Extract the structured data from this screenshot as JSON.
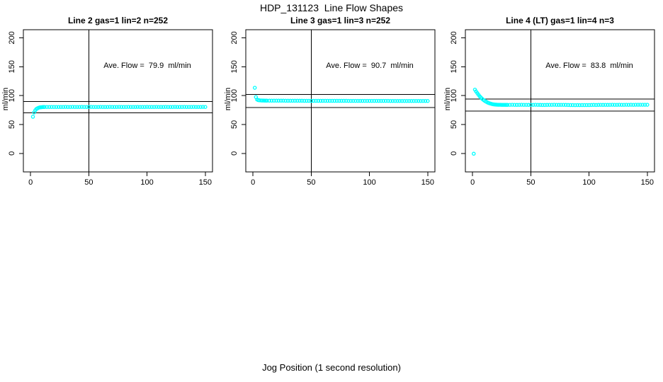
{
  "figure": {
    "title": "HDP_131123  Line Flow Shapes",
    "xlabel": "Jog Position (1 second resolution)",
    "background_color": "#FFFFFF",
    "point_color": "#00FFFF",
    "line_color": "#000000"
  },
  "chart_data": [
    {
      "type": "scatter",
      "title": "Line 2 gas=1 lin=2 n=252",
      "annotation": "Ave. Flow =  79.9  ml/min",
      "ave_flow_ml_min": 79.9,
      "ylabel": "ml/min",
      "xticks": [
        0,
        50,
        100,
        150
      ],
      "yticks": [
        0,
        50,
        100,
        150,
        200
      ],
      "xlim": [
        -6.2,
        156.2
      ],
      "ylim": [
        -32,
        214
      ],
      "vline_x": 50,
      "hlines": [
        89.9,
        69.9
      ],
      "grid": false,
      "points": [
        [
          2,
          63.5
        ],
        [
          3,
          70.8
        ],
        [
          4,
          74.6
        ],
        [
          5,
          76.9
        ],
        [
          6,
          78.2
        ],
        [
          7,
          79.1
        ],
        [
          8,
          79.6
        ],
        [
          9,
          79.9
        ],
        [
          10,
          80.1
        ],
        [
          11,
          80.2
        ],
        [
          12,
          80.3
        ],
        [
          14,
          80.3
        ],
        [
          16,
          80.4
        ],
        [
          18,
          80.4
        ],
        [
          20,
          80.4
        ],
        [
          22,
          80.4
        ],
        [
          24,
          80.4
        ],
        [
          26,
          80.4
        ],
        [
          28,
          80.4
        ],
        [
          30,
          80.5
        ],
        [
          32,
          80.4
        ],
        [
          34,
          80.4
        ],
        [
          36,
          80.5
        ],
        [
          38,
          80.4
        ],
        [
          40,
          80.4
        ],
        [
          42,
          80.4
        ],
        [
          44,
          80.5
        ],
        [
          46,
          80.4
        ],
        [
          48,
          80.4
        ],
        [
          50,
          80.4
        ],
        [
          52,
          80.5
        ],
        [
          54,
          80.4
        ],
        [
          56,
          80.4
        ],
        [
          58,
          80.4
        ],
        [
          60,
          80.5
        ],
        [
          62,
          80.4
        ],
        [
          64,
          80.4
        ],
        [
          66,
          80.4
        ],
        [
          68,
          80.5
        ],
        [
          70,
          80.4
        ],
        [
          72,
          80.4
        ],
        [
          74,
          80.4
        ],
        [
          76,
          80.5
        ],
        [
          78,
          80.4
        ],
        [
          80,
          80.4
        ],
        [
          82,
          80.4
        ],
        [
          84,
          80.5
        ],
        [
          86,
          80.4
        ],
        [
          88,
          80.4
        ],
        [
          90,
          80.4
        ],
        [
          92,
          80.5
        ],
        [
          94,
          80.4
        ],
        [
          96,
          80.4
        ],
        [
          98,
          80.4
        ],
        [
          100,
          80.5
        ],
        [
          102,
          80.4
        ],
        [
          104,
          80.4
        ],
        [
          106,
          80.4
        ],
        [
          108,
          80.5
        ],
        [
          110,
          80.4
        ],
        [
          112,
          80.4
        ],
        [
          114,
          80.4
        ],
        [
          116,
          80.5
        ],
        [
          118,
          80.4
        ],
        [
          120,
          80.4
        ],
        [
          122,
          80.4
        ],
        [
          124,
          80.5
        ],
        [
          126,
          80.4
        ],
        [
          128,
          80.4
        ],
        [
          130,
          80.4
        ],
        [
          132,
          80.5
        ],
        [
          134,
          80.4
        ],
        [
          136,
          80.4
        ],
        [
          138,
          80.4
        ],
        [
          140,
          80.5
        ],
        [
          142,
          80.4
        ],
        [
          144,
          80.4
        ],
        [
          146,
          80.4
        ],
        [
          148,
          80.5
        ],
        [
          150,
          80.4
        ]
      ]
    },
    {
      "type": "scatter",
      "title": "Line 3 gas=1 lin=3 n=252",
      "annotation": "Ave. Flow =  90.7  ml/min",
      "ave_flow_ml_min": 90.7,
      "ylabel": "ml/min",
      "xticks": [
        0,
        50,
        100,
        150
      ],
      "yticks": [
        0,
        50,
        100,
        150,
        200
      ],
      "xlim": [
        -6.2,
        156.2
      ],
      "ylim": [
        -32,
        214
      ],
      "vline_x": 50,
      "hlines": [
        102.0,
        79.4
      ],
      "grid": false,
      "points": [
        [
          1.5,
          113.5
        ],
        [
          2.5,
          97.5
        ],
        [
          3.5,
          93.2
        ],
        [
          4.5,
          92.2
        ],
        [
          5.5,
          91.8
        ],
        [
          7,
          91.6
        ],
        [
          8,
          91.5
        ],
        [
          9,
          91.5
        ],
        [
          10,
          91.4
        ],
        [
          11,
          91.4
        ],
        [
          12,
          91.3
        ],
        [
          14,
          91.3
        ],
        [
          16,
          91.3
        ],
        [
          18,
          91.2
        ],
        [
          20,
          91.2
        ],
        [
          22,
          91.2
        ],
        [
          24,
          91.2
        ],
        [
          26,
          91.2
        ],
        [
          28,
          91.1
        ],
        [
          30,
          91.1
        ],
        [
          32,
          91.1
        ],
        [
          34,
          91.1
        ],
        [
          36,
          91.1
        ],
        [
          38,
          91.1
        ],
        [
          40,
          91.1
        ],
        [
          42,
          91.1
        ],
        [
          44,
          91.0
        ],
        [
          46,
          91.0
        ],
        [
          48,
          91.0
        ],
        [
          50,
          91.0
        ],
        [
          52,
          91.0
        ],
        [
          54,
          91.0
        ],
        [
          56,
          91.0
        ],
        [
          58,
          91.0
        ],
        [
          60,
          91.0
        ],
        [
          62,
          91.0
        ],
        [
          64,
          91.0
        ],
        [
          66,
          91.0
        ],
        [
          68,
          91.0
        ],
        [
          70,
          91.0
        ],
        [
          72,
          91.0
        ],
        [
          74,
          91.0
        ],
        [
          76,
          91.0
        ],
        [
          78,
          91.0
        ],
        [
          80,
          91.0
        ],
        [
          82,
          90.9
        ],
        [
          84,
          90.9
        ],
        [
          86,
          90.9
        ],
        [
          88,
          90.9
        ],
        [
          90,
          90.9
        ],
        [
          92,
          90.9
        ],
        [
          94,
          90.9
        ],
        [
          96,
          90.9
        ],
        [
          98,
          90.9
        ],
        [
          100,
          90.9
        ],
        [
          102,
          90.9
        ],
        [
          104,
          90.9
        ],
        [
          106,
          90.9
        ],
        [
          108,
          90.9
        ],
        [
          110,
          90.9
        ],
        [
          112,
          90.9
        ],
        [
          114,
          90.9
        ],
        [
          116,
          90.9
        ],
        [
          118,
          90.8
        ],
        [
          120,
          90.8
        ],
        [
          122,
          90.8
        ],
        [
          124,
          90.8
        ],
        [
          126,
          90.8
        ],
        [
          128,
          90.8
        ],
        [
          130,
          90.8
        ],
        [
          132,
          90.8
        ],
        [
          134,
          90.8
        ],
        [
          136,
          90.8
        ],
        [
          138,
          90.8
        ],
        [
          140,
          90.8
        ],
        [
          142,
          90.8
        ],
        [
          144,
          90.8
        ],
        [
          146,
          90.8
        ],
        [
          148,
          90.8
        ],
        [
          150,
          90.8
        ]
      ]
    },
    {
      "type": "scatter",
      "title": "Line 4 (LT) gas=1 lin=4 n=3",
      "annotation": "Ave. Flow =  83.8  ml/min",
      "ave_flow_ml_min": 83.8,
      "ylabel": "ml/min",
      "xticks": [
        0,
        50,
        100,
        150
      ],
      "yticks": [
        0,
        50,
        100,
        150,
        200
      ],
      "xlim": [
        -6.2,
        156.2
      ],
      "ylim": [
        -32,
        214
      ],
      "vline_x": 50,
      "hlines": [
        94.3,
        73.3
      ],
      "grid": false,
      "points": [
        [
          1,
          -0.5
        ],
        [
          2,
          110.3
        ],
        [
          3,
          107.2
        ],
        [
          4,
          104.3
        ],
        [
          5,
          101.6
        ],
        [
          6,
          99.1
        ],
        [
          7,
          96.9
        ],
        [
          8,
          94.9
        ],
        [
          9,
          93.1
        ],
        [
          10,
          91.6
        ],
        [
          11,
          90.2
        ],
        [
          12,
          89.0
        ],
        [
          13,
          88.0
        ],
        [
          14,
          87.1
        ],
        [
          15,
          86.4
        ],
        [
          16,
          85.8
        ],
        [
          17,
          85.3
        ],
        [
          18,
          84.9
        ],
        [
          19,
          84.6
        ],
        [
          20,
          84.4
        ],
        [
          21,
          84.3
        ],
        [
          22,
          84.2
        ],
        [
          23,
          84.1
        ],
        [
          24,
          84.1
        ],
        [
          25,
          84.0
        ],
        [
          26,
          84.0
        ],
        [
          27,
          84.0
        ],
        [
          28,
          84.0
        ],
        [
          29,
          83.9
        ],
        [
          30,
          83.9
        ],
        [
          32,
          84.0
        ],
        [
          34,
          84.1
        ],
        [
          36,
          84.0
        ],
        [
          38,
          83.9
        ],
        [
          40,
          84.0
        ],
        [
          42,
          84.1
        ],
        [
          44,
          84.0
        ],
        [
          46,
          84.0
        ],
        [
          48,
          83.9
        ],
        [
          50,
          84.0
        ],
        [
          52,
          84.0
        ],
        [
          54,
          84.1
        ],
        [
          56,
          84.0
        ],
        [
          58,
          83.9
        ],
        [
          60,
          83.8
        ],
        [
          62,
          83.8
        ],
        [
          64,
          83.9
        ],
        [
          66,
          84.0
        ],
        [
          68,
          84.0
        ],
        [
          70,
          84.1
        ],
        [
          72,
          84.0
        ],
        [
          74,
          83.9
        ],
        [
          76,
          84.0
        ],
        [
          78,
          84.0
        ],
        [
          80,
          83.9
        ],
        [
          82,
          83.8
        ],
        [
          84,
          83.7
        ],
        [
          86,
          83.6
        ],
        [
          88,
          83.5
        ],
        [
          90,
          83.6
        ],
        [
          92,
          83.5
        ],
        [
          94,
          83.6
        ],
        [
          96,
          83.7
        ],
        [
          98,
          83.6
        ],
        [
          100,
          83.7
        ],
        [
          102,
          83.8
        ],
        [
          104,
          83.9
        ],
        [
          106,
          83.8
        ],
        [
          108,
          83.9
        ],
        [
          110,
          84.0
        ],
        [
          112,
          83.9
        ],
        [
          114,
          84.0
        ],
        [
          116,
          83.9
        ],
        [
          118,
          84.0
        ],
        [
          120,
          84.1
        ],
        [
          122,
          84.0
        ],
        [
          124,
          84.0
        ],
        [
          126,
          84.1
        ],
        [
          128,
          84.0
        ],
        [
          130,
          84.0
        ],
        [
          132,
          84.1
        ],
        [
          134,
          84.0
        ],
        [
          136,
          84.1
        ],
        [
          138,
          84.0
        ],
        [
          140,
          84.1
        ],
        [
          142,
          84.2
        ],
        [
          144,
          84.1
        ],
        [
          146,
          84.2
        ],
        [
          148,
          84.2
        ],
        [
          150,
          84.2
        ]
      ]
    }
  ]
}
